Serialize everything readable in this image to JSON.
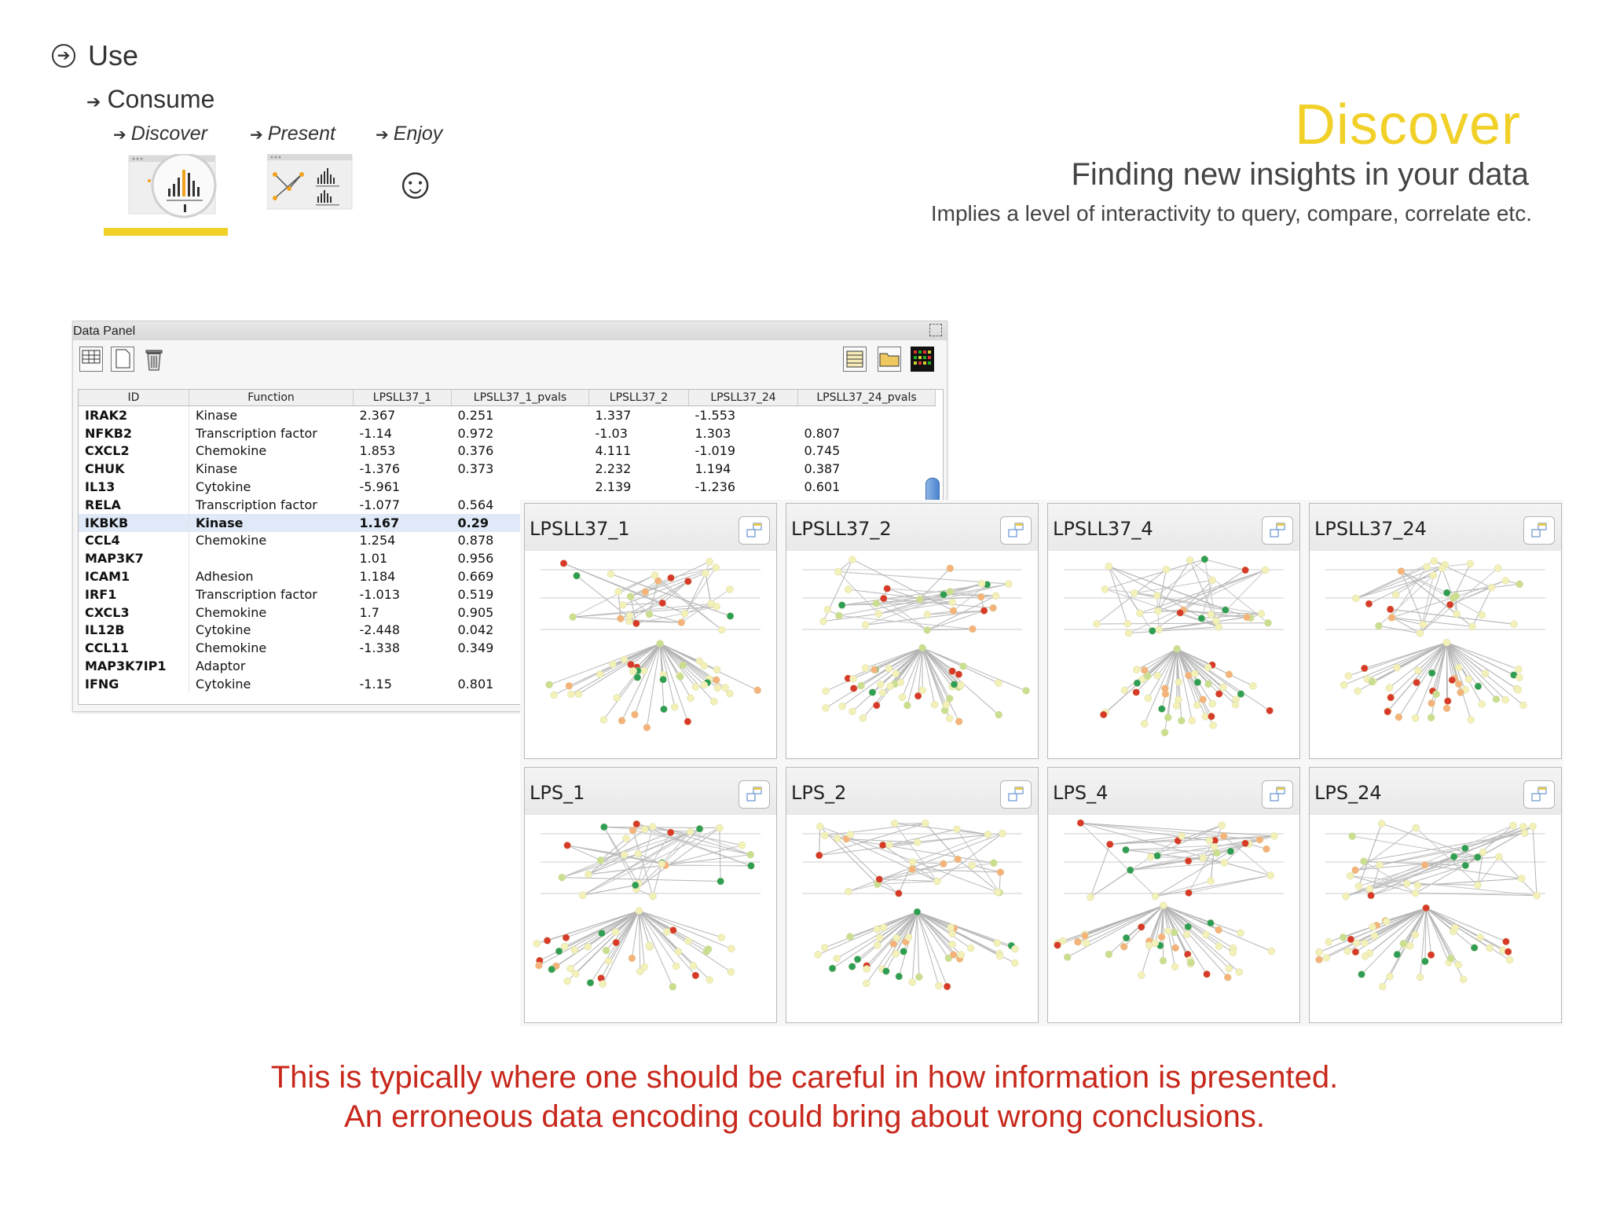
{
  "nav": {
    "use_label": "Use",
    "consume_label": "Consume",
    "sub_items": [
      {
        "label": "Discover",
        "icon": "bar-chart-magnifier-icon",
        "selected": true
      },
      {
        "label": "Present",
        "icon": "network-chart-icon",
        "selected": false
      },
      {
        "label": "Enjoy",
        "icon": "smiley-icon",
        "selected": false
      }
    ],
    "smiley_glyph": "☺",
    "accent_color": "#f1d028"
  },
  "heading": {
    "title": "Discover",
    "subtitle": "Finding new insights in your data",
    "description": "Implies a level of interactivity to query, compare, correlate etc."
  },
  "data_panel": {
    "title": "Data Panel",
    "columns": [
      "ID",
      "Function",
      "LPSLL37_1",
      "LPSLL37_1_pvals",
      "LPSLL37_2",
      "LPSLL37_24",
      "LPSLL37_24_pvals"
    ],
    "rows": [
      [
        "IRAK2",
        "Kinase",
        "2.367",
        "0.251",
        "1.337",
        "-1.553",
        ""
      ],
      [
        "NFKB2",
        "Transcription factor",
        "-1.14",
        "0.972",
        "-1.03",
        "1.303",
        "0.807"
      ],
      [
        "CXCL2",
        "Chemokine",
        "1.853",
        "0.376",
        "4.111",
        "-1.019",
        "0.745"
      ],
      [
        "CHUK",
        "Kinase",
        "-1.376",
        "0.373",
        "2.232",
        "1.194",
        "0.387"
      ],
      [
        "IL13",
        "Cytokine",
        "-5.961",
        "",
        "2.139",
        "-1.236",
        "0.601"
      ],
      [
        "RELA",
        "Transcription factor",
        "-1.077",
        "0.564",
        "",
        "",
        ""
      ],
      [
        "IKBKB",
        "Kinase",
        "1.167",
        "0.29",
        "",
        "",
        ""
      ],
      [
        "CCL4",
        "Chemokine",
        "1.254",
        "0.878",
        "",
        "",
        ""
      ],
      [
        "MAP3K7",
        "",
        "1.01",
        "0.956",
        "",
        "",
        ""
      ],
      [
        "ICAM1",
        "Adhesion",
        "1.184",
        "0.669",
        "",
        "",
        ""
      ],
      [
        "IRF1",
        "Transcription factor",
        "-1.013",
        "0.519",
        "",
        "",
        ""
      ],
      [
        "CXCL3",
        "Chemokine",
        "1.7",
        "0.905",
        "",
        "",
        ""
      ],
      [
        "IL12B",
        "Cytokine",
        "-2.448",
        "0.042",
        "",
        "",
        ""
      ],
      [
        "CCL11",
        "Chemokine",
        "-1.338",
        "0.349",
        "",
        "",
        ""
      ],
      [
        "MAP3K7IP1",
        "Adaptor",
        "",
        "",
        "",
        "",
        ""
      ],
      [
        "IFNG",
        "Cytokine",
        "-1.15",
        "0.801",
        "",
        "",
        ""
      ]
    ],
    "selected_row": 6
  },
  "networks": [
    {
      "label": "LPSLL37_1",
      "seed": 11
    },
    {
      "label": "LPSLL37_2",
      "seed": 23
    },
    {
      "label": "LPSLL37_4",
      "seed": 37
    },
    {
      "label": "LPSLL37_24",
      "seed": 41
    },
    {
      "label": "LPS_1",
      "seed": 53
    },
    {
      "label": "LPS_2",
      "seed": 67
    },
    {
      "label": "LPS_4",
      "seed": 71
    },
    {
      "label": "LPS_24",
      "seed": 89
    }
  ],
  "node_colors": [
    "#f3f1b8",
    "#f3f1b8",
    "#f3f1b8",
    "#f3f1b8",
    "#c9df8f",
    "#f5b27a",
    "#d83a2a",
    "#2f9e55"
  ],
  "warning": {
    "line1": "This is typically where one should be careful in how information is presented.",
    "line2": "An erroneous data encoding could bring about wrong conclusions."
  }
}
